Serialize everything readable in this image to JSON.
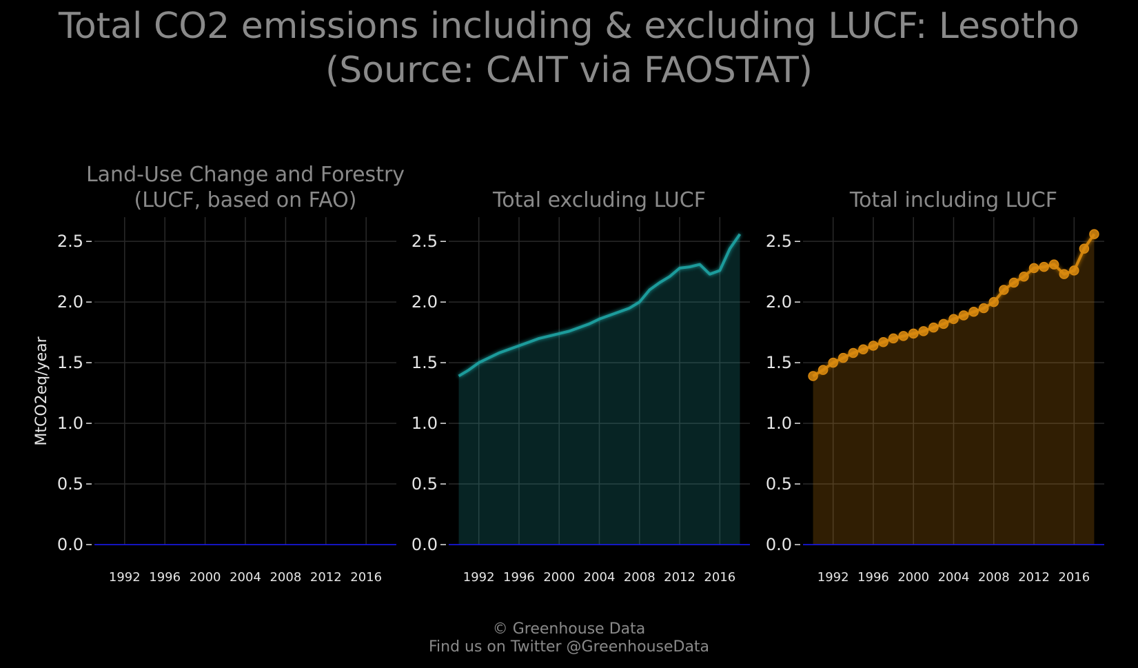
{
  "title_line1": "Total CO2 emissions including & excluding LUCF: Lesotho",
  "title_line2": "(Source: CAIT via FAOSTAT)",
  "footer_line1": "© Greenhouse Data",
  "footer_line2": "Find us on Twitter @GreenhouseData",
  "colors": {
    "background": "#000000",
    "grid": "#2a2a2a",
    "text": "#8a8a8a",
    "tick_text": "#e6e6e6",
    "baseline": "#1a1aff",
    "lucf": "#2f7d32",
    "excl": "#1fa3a3",
    "incl": "#d9890f"
  },
  "chart_data": [
    {
      "type": "area",
      "title_line1": "Land-Use Change and Forestry",
      "title_line2": "(LUCF, based on FAO)",
      "ylabel": "MtCO2eq/year",
      "ylim": [
        0,
        2.7
      ],
      "xlim": [
        1989,
        2019
      ],
      "yticks": [
        "0.0",
        "0.5",
        "1.0",
        "1.5",
        "2.0",
        "2.5"
      ],
      "xticks": [
        "1992",
        "1996",
        "2000",
        "2004",
        "2008",
        "2012",
        "2016"
      ],
      "grid": true,
      "series": [
        {
          "x": [
            1990,
            1991,
            1992,
            1993,
            1994,
            1995,
            1996,
            1997,
            1998,
            1999,
            2000,
            2001,
            2002,
            2003,
            2004,
            2005,
            2006,
            2007,
            2008,
            2009,
            2010,
            2011,
            2012,
            2013,
            2014,
            2015,
            2016,
            2017,
            2018
          ],
          "values": [
            0,
            0,
            0,
            0,
            0,
            0,
            0,
            0,
            0,
            0,
            0,
            0,
            0,
            0,
            0,
            0,
            0,
            0,
            0,
            0,
            0,
            0,
            0,
            0,
            0,
            0,
            0,
            0,
            0
          ]
        }
      ]
    },
    {
      "type": "area",
      "title_line1": "",
      "title_line2": "Total excluding LUCF",
      "ylabel": "",
      "ylim": [
        0,
        2.7
      ],
      "xlim": [
        1989,
        2019
      ],
      "yticks": [
        "0.0",
        "0.5",
        "1.0",
        "1.5",
        "2.0",
        "2.5"
      ],
      "xticks": [
        "1992",
        "1996",
        "2000",
        "2004",
        "2008",
        "2012",
        "2016"
      ],
      "grid": true,
      "series": [
        {
          "x": [
            1990,
            1991,
            1992,
            1993,
            1994,
            1995,
            1996,
            1997,
            1998,
            1999,
            2000,
            2001,
            2002,
            2003,
            2004,
            2005,
            2006,
            2007,
            2008,
            2009,
            2010,
            2011,
            2012,
            2013,
            2014,
            2015,
            2016,
            2017,
            2018
          ],
          "values": [
            1.39,
            1.44,
            1.5,
            1.54,
            1.58,
            1.61,
            1.64,
            1.67,
            1.7,
            1.72,
            1.74,
            1.76,
            1.79,
            1.82,
            1.86,
            1.89,
            1.92,
            1.95,
            2.0,
            2.1,
            2.16,
            2.21,
            2.28,
            2.29,
            2.31,
            2.23,
            2.26,
            2.44,
            2.56
          ]
        }
      ]
    },
    {
      "type": "area",
      "title_line1": "",
      "title_line2": "Total including LUCF",
      "ylabel": "",
      "ylim": [
        0,
        2.7
      ],
      "xlim": [
        1989,
        2019
      ],
      "yticks": [
        "0.0",
        "0.5",
        "1.0",
        "1.5",
        "2.0",
        "2.5"
      ],
      "xticks": [
        "1992",
        "1996",
        "2000",
        "2004",
        "2008",
        "2012",
        "2016"
      ],
      "grid": true,
      "markers": true,
      "series": [
        {
          "x": [
            1990,
            1991,
            1992,
            1993,
            1994,
            1995,
            1996,
            1997,
            1998,
            1999,
            2000,
            2001,
            2002,
            2003,
            2004,
            2005,
            2006,
            2007,
            2008,
            2009,
            2010,
            2011,
            2012,
            2013,
            2014,
            2015,
            2016,
            2017,
            2018
          ],
          "values": [
            1.39,
            1.44,
            1.5,
            1.54,
            1.58,
            1.61,
            1.64,
            1.67,
            1.7,
            1.72,
            1.74,
            1.76,
            1.79,
            1.82,
            1.86,
            1.89,
            1.92,
            1.95,
            2.0,
            2.1,
            2.16,
            2.21,
            2.28,
            2.29,
            2.31,
            2.23,
            2.26,
            2.44,
            2.56
          ]
        }
      ]
    }
  ]
}
